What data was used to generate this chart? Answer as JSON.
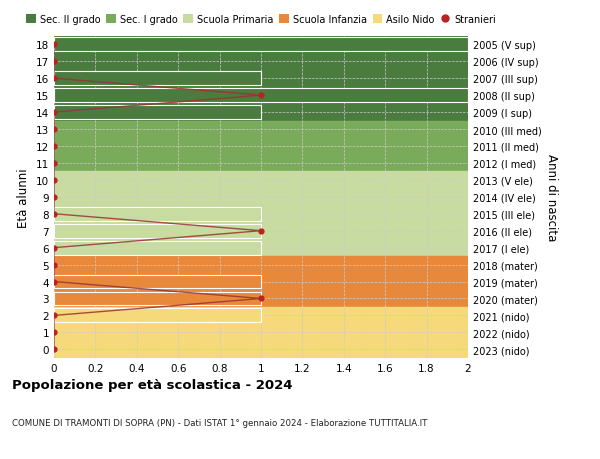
{
  "title": "Popolazione per età scolastica - 2024",
  "subtitle": "COMUNE DI TRAMONTI DI SOPRA (PN) - Dati ISTAT 1° gennaio 2024 - Elaborazione TUTTITALIA.IT",
  "ylabel": "Età alunni",
  "ylabel_right": "Anni di nascita",
  "xlim": [
    0,
    2.0
  ],
  "ylim": [
    -0.5,
    18.5
  ],
  "yticks": [
    0,
    1,
    2,
    3,
    4,
    5,
    6,
    7,
    8,
    9,
    10,
    11,
    12,
    13,
    14,
    15,
    16,
    17,
    18
  ],
  "xticks": [
    0,
    0.2,
    0.4,
    0.6,
    0.8,
    1.0,
    1.2,
    1.4,
    1.6,
    1.8,
    2.0
  ],
  "right_labels": [
    "2023 (nido)",
    "2022 (nido)",
    "2021 (nido)",
    "2020 (mater)",
    "2019 (mater)",
    "2018 (mater)",
    "2017 (I ele)",
    "2016 (II ele)",
    "2015 (III ele)",
    "2014 (IV ele)",
    "2013 (V ele)",
    "2012 (I med)",
    "2011 (II med)",
    "2010 (III med)",
    "2009 (I sup)",
    "2008 (II sup)",
    "2007 (III sup)",
    "2006 (IV sup)",
    "2005 (V sup)"
  ],
  "bands": [
    {
      "ymin": 13.5,
      "ymax": 18.5,
      "color": "#4a7c3f"
    },
    {
      "ymin": 10.5,
      "ymax": 13.5,
      "color": "#7aab5a"
    },
    {
      "ymin": 5.5,
      "ymax": 10.5,
      "color": "#c8dba0"
    },
    {
      "ymin": 2.5,
      "ymax": 5.5,
      "color": "#e8883a"
    },
    {
      "ymin": -0.5,
      "ymax": 2.5,
      "color": "#f5d97a"
    }
  ],
  "bar_data": [
    {
      "age": 18,
      "value": 2.0,
      "color": "#4a7c3f"
    },
    {
      "age": 16,
      "value": 1.0,
      "color": "#4a7c3f"
    },
    {
      "age": 15,
      "value": 2.0,
      "color": "#4a7c3f"
    },
    {
      "age": 14,
      "value": 1.0,
      "color": "#4a7c3f"
    },
    {
      "age": 8,
      "value": 1.0,
      "color": "#c8dba0"
    },
    {
      "age": 7,
      "value": 1.0,
      "color": "#c8dba0"
    },
    {
      "age": 6,
      "value": 1.0,
      "color": "#c8dba0"
    },
    {
      "age": 4,
      "value": 1.0,
      "color": "#e8883a"
    },
    {
      "age": 3,
      "value": 1.0,
      "color": "#e8883a"
    },
    {
      "age": 2,
      "value": 1.0,
      "color": "#f5d97a"
    }
  ],
  "stranieri_ages": [
    0,
    1,
    2,
    3,
    4,
    5,
    6,
    7,
    8,
    9,
    10,
    11,
    12,
    13,
    14,
    15,
    16,
    17,
    18
  ],
  "stranieri_vals": [
    0,
    0,
    0,
    1,
    0,
    0,
    0,
    1,
    0,
    0,
    0,
    0,
    0,
    0,
    0,
    1,
    0,
    0,
    0
  ],
  "legend_items": [
    {
      "label": "Sec. II grado",
      "color": "#4a7c3f",
      "type": "patch"
    },
    {
      "label": "Sec. I grado",
      "color": "#7aab5a",
      "type": "patch"
    },
    {
      "label": "Scuola Primaria",
      "color": "#c8dba0",
      "type": "patch"
    },
    {
      "label": "Scuola Infanzia",
      "color": "#e8883a",
      "type": "patch"
    },
    {
      "label": "Asilo Nido",
      "color": "#f5d97a",
      "type": "patch"
    },
    {
      "label": "Stranieri",
      "color": "#bb2222",
      "type": "dot"
    }
  ],
  "stranieri_line_color": "#993333",
  "stranieri_dot_color": "#bb2222",
  "background_color": "#ffffff",
  "grid_color": "#cccccc"
}
